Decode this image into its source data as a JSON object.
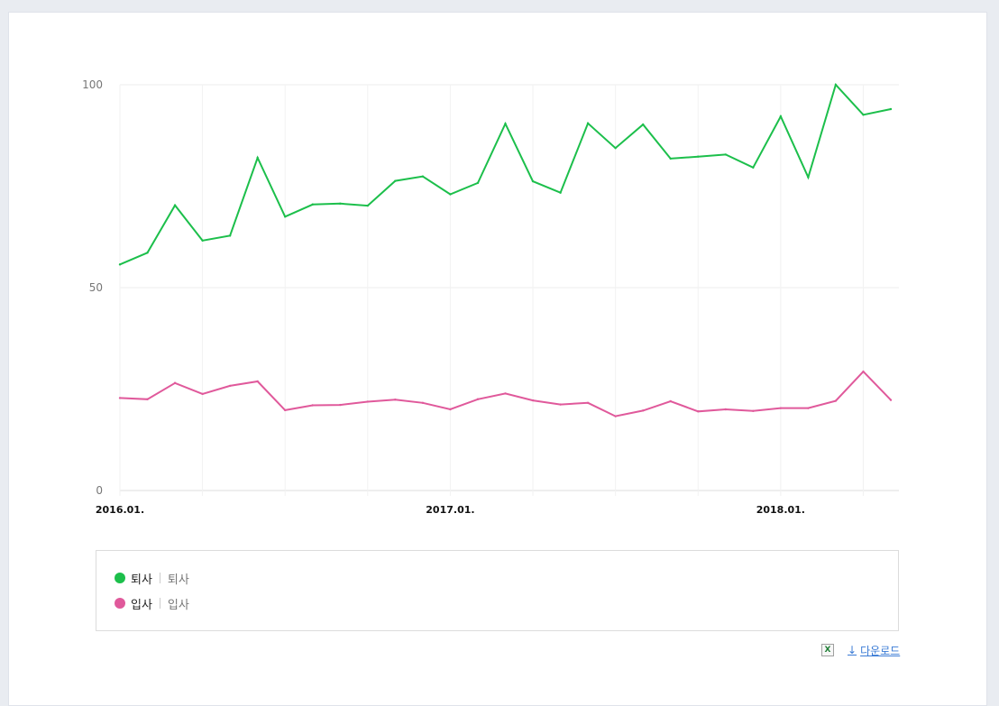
{
  "chart_data": {
    "type": "line",
    "ylim": [
      0,
      100
    ],
    "yticks": [
      "100",
      "50",
      "0"
    ],
    "xtick_labels": [
      "2016.01.",
      "2017.01.",
      "2018.01."
    ],
    "grid": true,
    "x": [
      "2016.01.",
      "2016.02.",
      "2016.03.",
      "2016.04.",
      "2016.05.",
      "2016.06.",
      "2016.07.",
      "2016.08.",
      "2016.09.",
      "2016.10.",
      "2016.11.",
      "2016.12.",
      "2017.01.",
      "2017.02.",
      "2017.03.",
      "2017.04.",
      "2017.05.",
      "2017.06.",
      "2017.07.",
      "2017.08.",
      "2017.09.",
      "2017.10.",
      "2017.11.",
      "2017.12.",
      "2018.01.",
      "2018.02.",
      "2018.03.",
      "2018.04.",
      "2018.05."
    ],
    "series": [
      {
        "name": "퇴사",
        "color": "#1cbf4b",
        "values": [
          55.7,
          58.6,
          70.3,
          61.6,
          62.8,
          82.0,
          67.5,
          70.5,
          70.7,
          70.2,
          76.3,
          77.4,
          73.0,
          75.8,
          90.4,
          76.2,
          73.4,
          90.5,
          84.4,
          90.2,
          81.8,
          82.3,
          82.8,
          79.6,
          92.2,
          77.2,
          100.0,
          92.6,
          94.0
        ]
      },
      {
        "name": "입사",
        "color": "#e0599b",
        "values": [
          22.8,
          22.5,
          26.5,
          23.8,
          25.8,
          26.9,
          19.8,
          21.0,
          21.1,
          21.9,
          22.4,
          21.6,
          20.0,
          22.5,
          23.9,
          22.2,
          21.2,
          21.6,
          18.3,
          19.7,
          22.0,
          19.5,
          20.0,
          19.6,
          20.3,
          20.3,
          22.1,
          29.3,
          22.3
        ]
      }
    ]
  },
  "legend": {
    "items": [
      {
        "label": "퇴사",
        "sub": "퇴사",
        "color": "#1cbf4b"
      },
      {
        "label": "입사",
        "sub": "입사",
        "color": "#e0599b"
      }
    ]
  },
  "download": {
    "label": "다운로드",
    "icon": "excel-icon"
  }
}
